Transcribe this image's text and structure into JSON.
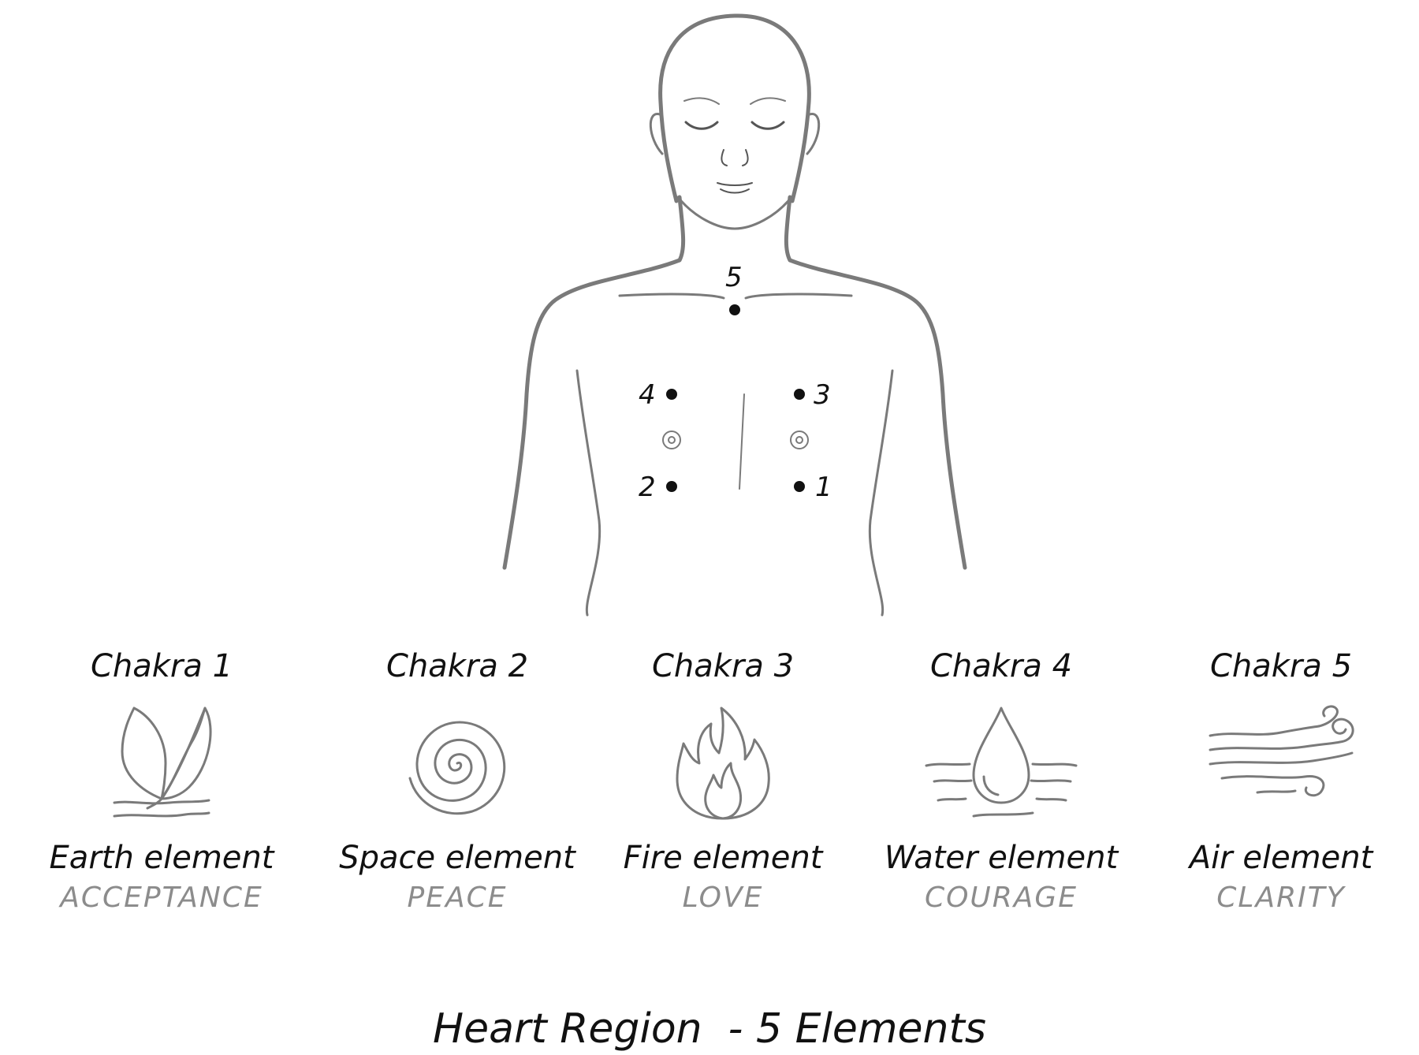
{
  "markers": [
    {
      "number": "5"
    },
    {
      "number": "4"
    },
    {
      "number": "3"
    },
    {
      "number": "2"
    },
    {
      "number": "1"
    }
  ],
  "elements": [
    {
      "chakra": "Chakra 1",
      "element": "Earth element",
      "quality": "ACCEPTANCE",
      "icon": "leaf-icon"
    },
    {
      "chakra": "Chakra 2",
      "element": "Space element",
      "quality": "PEACE",
      "icon": "spiral-icon"
    },
    {
      "chakra": "Chakra 3",
      "element": "Fire element",
      "quality": "LOVE",
      "icon": "flame-icon"
    },
    {
      "chakra": "Chakra 4",
      "element": "Water element",
      "quality": "COURAGE",
      "icon": "water-drop-icon"
    },
    {
      "chakra": "Chakra 5",
      "element": "Air element",
      "quality": "CLARITY",
      "icon": "wind-icon"
    }
  ],
  "footer": {
    "title": "Heart Region  - 5 Elements"
  },
  "colors": {
    "line": "#7a7a7a",
    "ink": "#111111",
    "muted": "#8c8c8c"
  }
}
